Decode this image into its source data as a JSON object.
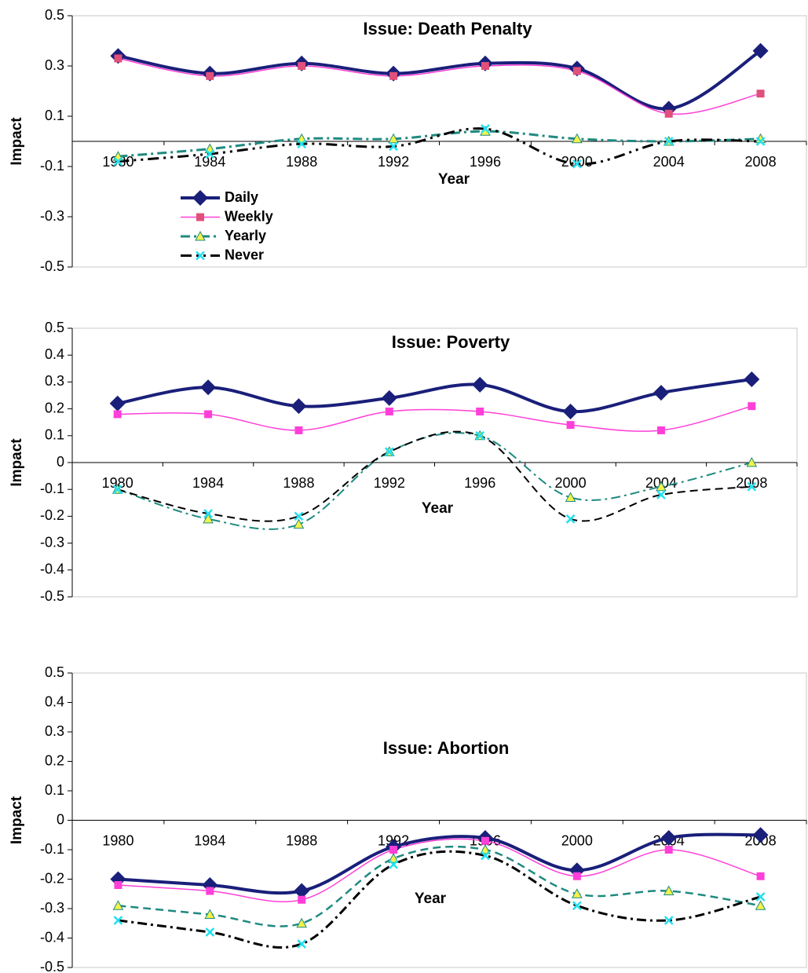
{
  "chart_data": [
    {
      "type": "line",
      "title": "Issue: Death Penalty",
      "x_label": "Year",
      "y_label": "Impact",
      "categories": [
        "1980",
        "1984",
        "1988",
        "1992",
        "1996",
        "2000",
        "2004",
        "2008"
      ],
      "ylim": [
        -0.5,
        0.5
      ],
      "yticks": [
        0.5,
        0.3,
        0.1,
        -0.1,
        -0.3,
        -0.5
      ],
      "legend": "lower-left",
      "series": [
        {
          "name": "Daily",
          "color": "#1a1f7a",
          "marker": "diamond",
          "marker_color": "#1a1f7a",
          "dash": "solid",
          "width": 4,
          "values": [
            0.34,
            0.27,
            0.31,
            0.27,
            0.31,
            0.29,
            0.13,
            0.36
          ]
        },
        {
          "name": "Weekly",
          "color": "#ff3fd8",
          "marker": "square",
          "marker_color": "#e0507a",
          "dash": "solid",
          "width": 1.5,
          "values": [
            0.33,
            0.26,
            0.3,
            0.26,
            0.3,
            0.28,
            0.11,
            0.19
          ]
        },
        {
          "name": "Yearly",
          "color": "#1f8a80",
          "marker": "triangle",
          "marker_color": "#f2f24a",
          "dash": "dash-dot",
          "width": 3,
          "values": [
            -0.06,
            -0.03,
            0.01,
            0.01,
            0.04,
            0.01,
            0.0,
            0.01
          ]
        },
        {
          "name": "Never",
          "color": "#000000",
          "marker": "x",
          "marker_color": "#22e0f0",
          "dash": "dash-dot-dot",
          "width": 3,
          "values": [
            -0.08,
            -0.05,
            -0.01,
            -0.02,
            0.05,
            -0.09,
            0.0,
            0.0
          ]
        }
      ]
    },
    {
      "type": "line",
      "title": "Issue: Poverty",
      "x_label": "Year",
      "y_label": "Impact",
      "categories": [
        "1980",
        "1984",
        "1988",
        "1992",
        "1996",
        "2000",
        "2004",
        "2008"
      ],
      "ylim": [
        -0.5,
        0.5
      ],
      "yticks": [
        0.5,
        0.4,
        0.3,
        0.2,
        0.1,
        0,
        -0.1,
        -0.2,
        -0.3,
        -0.4,
        -0.5
      ],
      "series": [
        {
          "color": "#1a1f7a",
          "marker": "diamond",
          "marker_color": "#1a1f7a",
          "dash": "solid",
          "width": 4,
          "values": [
            0.22,
            0.28,
            0.21,
            0.24,
            0.29,
            0.19,
            0.26,
            0.31
          ]
        },
        {
          "color": "#ff3fd8",
          "marker": "square",
          "marker_color": "#ff3fd8",
          "dash": "solid",
          "width": 1.5,
          "values": [
            0.18,
            0.18,
            0.12,
            0.19,
            0.19,
            0.14,
            0.12,
            0.21
          ]
        },
        {
          "color": "#1f8a80",
          "marker": "triangle",
          "marker_color": "#f2f24a",
          "dash": "dash-dot",
          "width": 2,
          "values": [
            -0.1,
            -0.21,
            -0.23,
            0.04,
            0.1,
            -0.13,
            -0.09,
            0.0
          ]
        },
        {
          "color": "#000000",
          "marker": "x",
          "marker_color": "#22e0f0",
          "dash": "dash",
          "width": 2,
          "values": [
            -0.1,
            -0.19,
            -0.2,
            0.04,
            0.1,
            -0.21,
            -0.12,
            -0.09
          ]
        }
      ]
    },
    {
      "type": "line",
      "title": "Issue: Abortion",
      "x_label": "Year",
      "y_label": "Impact",
      "categories": [
        "1980",
        "1984",
        "1988",
        "1992",
        "1996",
        "2000",
        "2004",
        "2008"
      ],
      "ylim": [
        -0.5,
        0.5
      ],
      "yticks": [
        0.5,
        0.4,
        0.3,
        0.2,
        0.1,
        0,
        -0.1,
        -0.2,
        -0.3,
        -0.4,
        -0.5
      ],
      "series": [
        {
          "color": "#1a1f7a",
          "marker": "diamond",
          "marker_color": "#1a1f7a",
          "dash": "solid",
          "width": 4,
          "values": [
            -0.2,
            -0.22,
            -0.24,
            -0.09,
            -0.06,
            -0.17,
            -0.06,
            -0.05
          ]
        },
        {
          "color": "#ff3fd8",
          "marker": "square",
          "marker_color": "#ff3fd8",
          "dash": "solid",
          "width": 1.5,
          "values": [
            -0.22,
            -0.24,
            -0.27,
            -0.1,
            -0.07,
            -0.19,
            -0.1,
            -0.19
          ]
        },
        {
          "color": "#1f8a80",
          "marker": "triangle",
          "marker_color": "#f2f24a",
          "dash": "dash",
          "width": 2.5,
          "values": [
            -0.29,
            -0.32,
            -0.35,
            -0.13,
            -0.1,
            -0.25,
            -0.24,
            -0.29
          ]
        },
        {
          "color": "#000000",
          "marker": "x",
          "marker_color": "#22e0f0",
          "dash": "dash-dot",
          "width": 3,
          "values": [
            -0.34,
            -0.38,
            -0.42,
            -0.15,
            -0.12,
            -0.29,
            -0.34,
            -0.26
          ]
        }
      ]
    }
  ]
}
